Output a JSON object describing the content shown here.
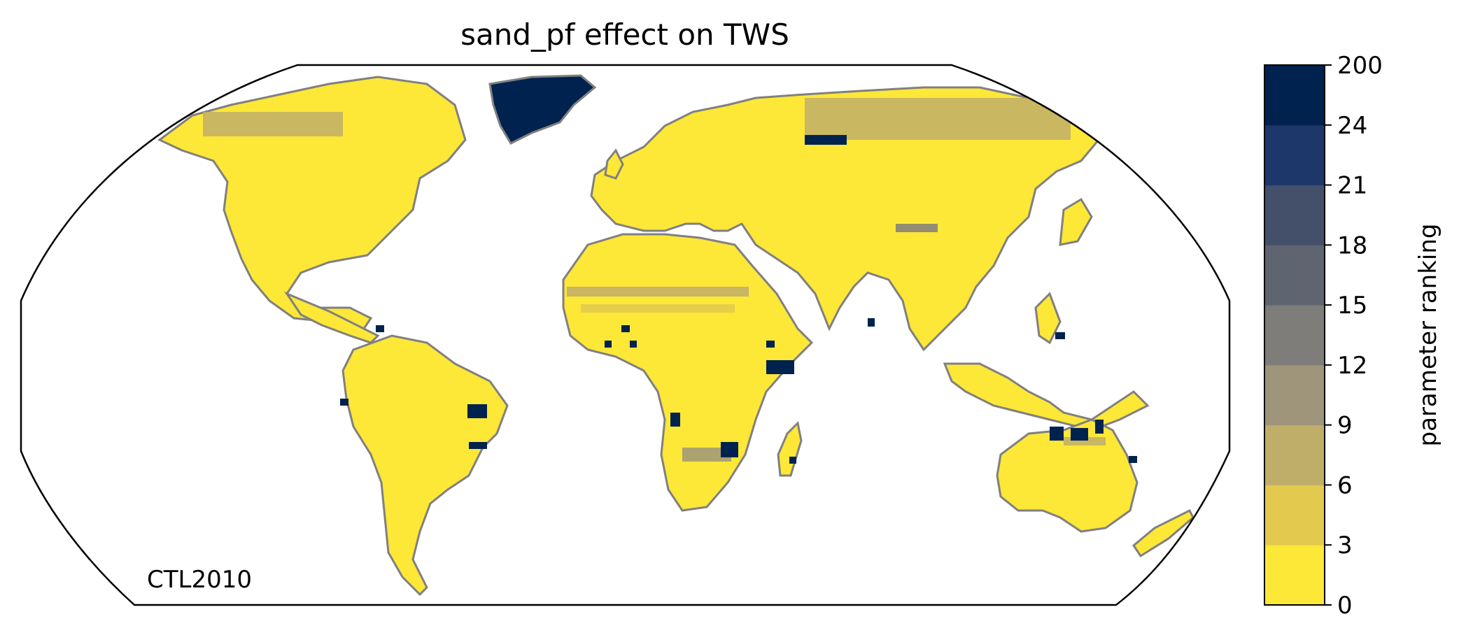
{
  "title": "sand_pf effect on TWS",
  "run_label": "CTL2010",
  "colorbar": {
    "label": "parameter ranking",
    "tick_labels": [
      "0",
      "3",
      "6",
      "9",
      "12",
      "15",
      "18",
      "21",
      "24",
      "200"
    ],
    "colors": [
      "#fde737",
      "#e3ca4f",
      "#bfae6a",
      "#9e957a",
      "#7f7d7a",
      "#5f6471",
      "#444f6a",
      "#1d376b",
      "#00224e"
    ]
  },
  "map": {
    "projection": "Robinson",
    "land_base_color": "#fde737",
    "coastline_color": "#808080",
    "high_rank_regions": [
      "Greenland",
      "Amazon basin",
      "Central Africa",
      "East Africa",
      "Southern Africa",
      "Northern Australia",
      "Southeast Asia",
      "Siberia"
    ],
    "moderate_rank_regions": [
      "Sahel",
      "Siberia",
      "Canadian Arctic",
      "Mongolia",
      "Southern Africa"
    ]
  }
}
